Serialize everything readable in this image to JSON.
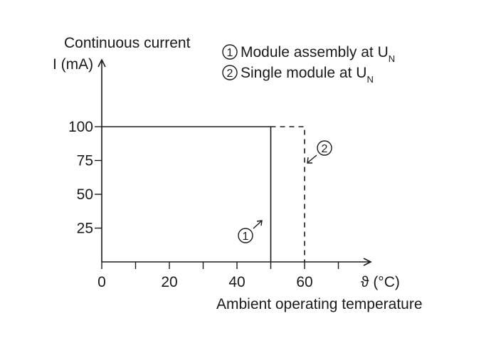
{
  "chart_data": {
    "type": "line",
    "ylabel_line1": "Continuous current",
    "ylabel_line2": "I (mA)",
    "xlabel": "Ambient operating temperature",
    "x_unit_label": "ϑ (°C)",
    "xlim": [
      0,
      80
    ],
    "ylim": [
      0,
      125
    ],
    "x_ticks": [
      0,
      10,
      20,
      30,
      40,
      50,
      60,
      70
    ],
    "x_tick_labels": [
      {
        "value": 0,
        "label": "0"
      },
      {
        "value": 20,
        "label": "20"
      },
      {
        "value": 40,
        "label": "40"
      },
      {
        "value": 60,
        "label": "60"
      }
    ],
    "y_ticks": [
      {
        "value": 25,
        "label": "25"
      },
      {
        "value": 50,
        "label": "50"
      },
      {
        "value": 75,
        "label": "75"
      },
      {
        "value": 100,
        "label": "100"
      }
    ],
    "series": [
      {
        "marker": "①",
        "name_prefix": "Module assembly at U",
        "name_sub": "N",
        "style": "solid",
        "x": [
          0,
          50,
          50
        ],
        "y": [
          100,
          100,
          0
        ]
      },
      {
        "marker": "②",
        "name_prefix": "Single module at U",
        "name_sub": "N",
        "style": "dashed",
        "x": [
          50,
          60,
          60
        ],
        "y": [
          100,
          100,
          0
        ]
      }
    ],
    "legend_position": "top-right",
    "grid": false,
    "colors": {
      "line": "#1a1a1a",
      "background": "#ffffff"
    }
  }
}
